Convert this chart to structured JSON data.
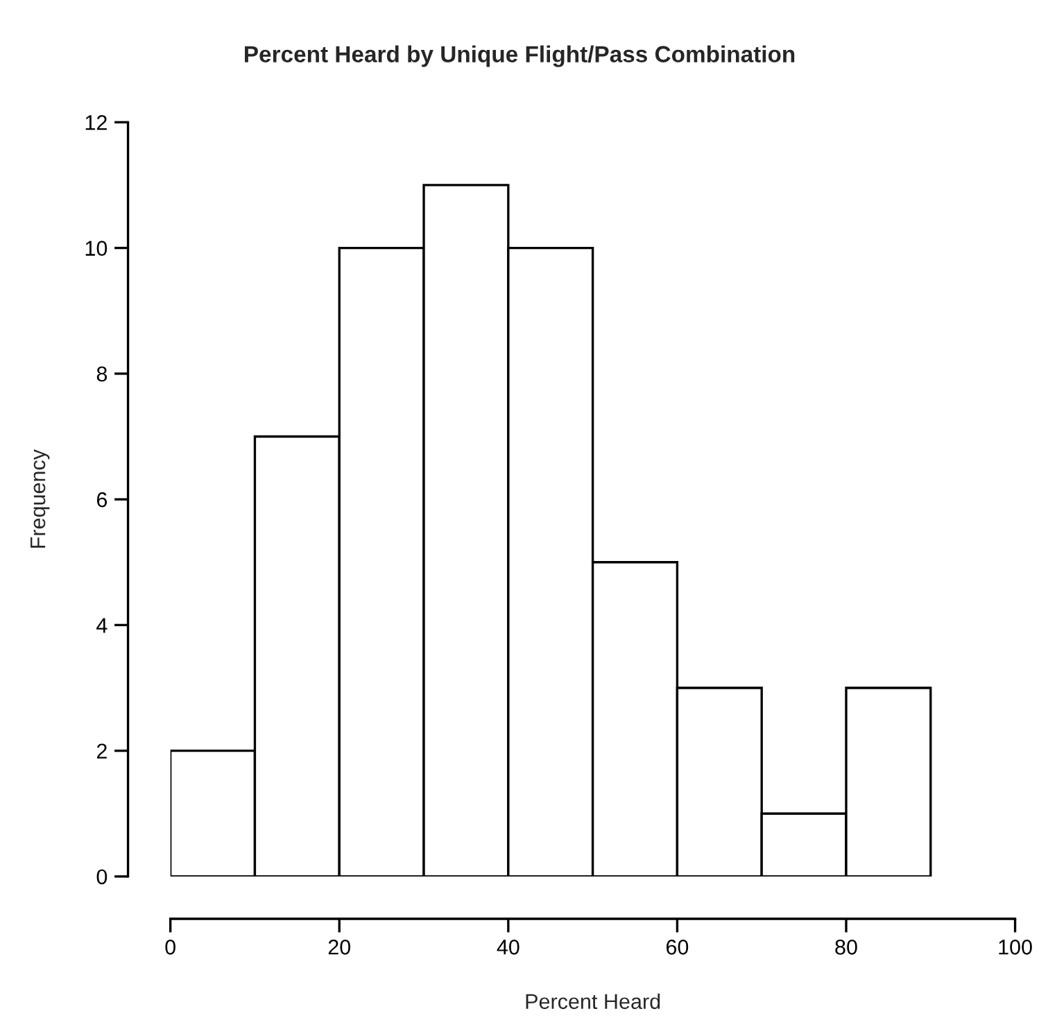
{
  "chart_data": {
    "type": "histogram",
    "title": "Percent Heard by Unique Flight/Pass Combination",
    "xlabel": "Percent Heard",
    "ylabel": "Frequency",
    "bins": [
      0,
      10,
      20,
      30,
      40,
      50,
      60,
      70,
      80,
      90
    ],
    "values": [
      2,
      7,
      10,
      11,
      10,
      5,
      3,
      1,
      3
    ],
    "color": "#ffffff",
    "xlim": [
      0,
      100
    ],
    "xticks": [
      0,
      20,
      40,
      60,
      80,
      100
    ],
    "ylim": [
      0,
      12
    ],
    "yticks": [
      0,
      2,
      4,
      6,
      8,
      10,
      12
    ],
    "grid": false,
    "legend": false
  }
}
